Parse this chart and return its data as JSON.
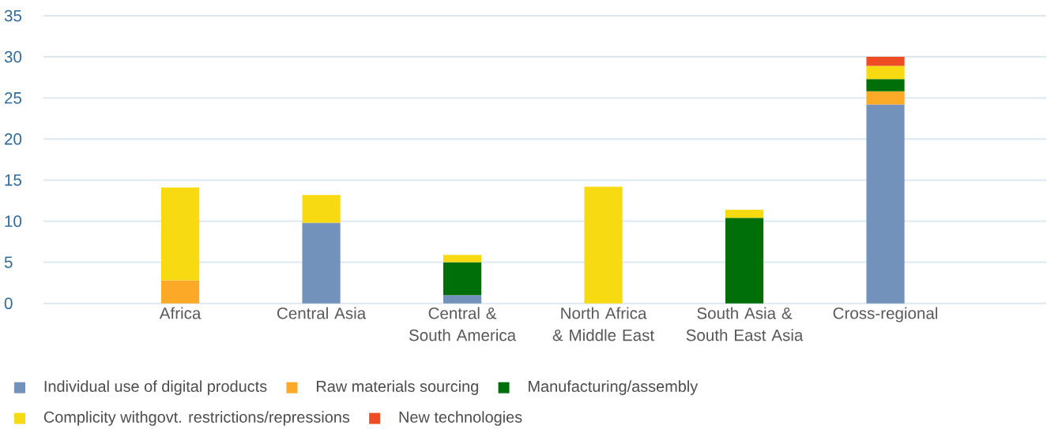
{
  "chart_data": {
    "type": "bar",
    "stacked": true,
    "categories": [
      "Africa",
      "Central Asia",
      "Central & South America",
      "North Africa & Middle East",
      "South Asia & South East Asia",
      "Cross-regional"
    ],
    "series": [
      {
        "name": "Individual use of digital products",
        "color": "#7392bb",
        "values": [
          null,
          9.8,
          1.0,
          null,
          null,
          24.2
        ]
      },
      {
        "name": "Raw materials sourcing",
        "color": "#fba927",
        "values": [
          2.8,
          null,
          null,
          null,
          null,
          1.6
        ]
      },
      {
        "name": "Manufacturing/assembly",
        "color": "#006f0a",
        "values": [
          null,
          null,
          4.0,
          null,
          10.4,
          1.5
        ]
      },
      {
        "name": "Complicity withgovt. restrictions/repressions",
        "color": "#f8da12",
        "values": [
          11.3,
          3.4,
          0.9,
          14.2,
          1.0,
          1.6
        ]
      },
      {
        "name": "New technologies",
        "color": "#ee4c24",
        "values": [
          null,
          null,
          null,
          null,
          null,
          1.1
        ]
      }
    ],
    "ylim": [
      0,
      35
    ],
    "yticks": [
      0,
      5,
      10,
      15,
      20,
      25,
      30,
      35
    ],
    "grid": "y",
    "legend": "bottom"
  }
}
